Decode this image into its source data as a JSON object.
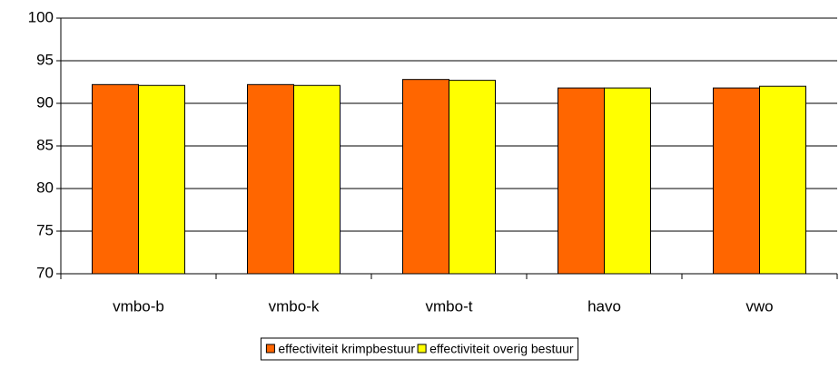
{
  "chart_data": {
    "type": "bar",
    "categories": [
      "vmbo-b",
      "vmbo-k",
      "vmbo-t",
      "havo",
      "vwo"
    ],
    "series": [
      {
        "name": "effectiviteit krimpbestuur",
        "color": "#ff6600",
        "values": [
          92.2,
          92.2,
          92.8,
          91.8,
          91.8
        ]
      },
      {
        "name": "effectiviteit overig bestuur",
        "color": "#ffff00",
        "values": [
          92.1,
          92.1,
          92.7,
          91.8,
          92.0
        ]
      }
    ],
    "ylim": [
      70,
      100
    ],
    "yticks": [
      70,
      75,
      80,
      85,
      90,
      95,
      100
    ],
    "grid": true,
    "legend": "bottom"
  }
}
